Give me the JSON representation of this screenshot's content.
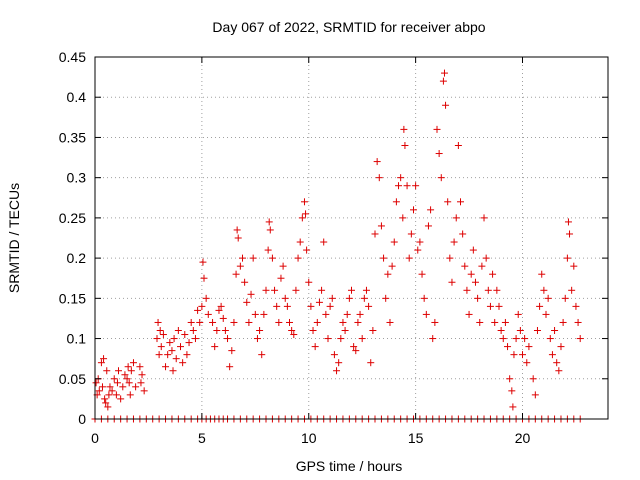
{
  "chart_data": {
    "type": "scatter",
    "title": "Day 067 of 2022, SRMTID for receiver abpo",
    "xlabel": "GPS time / hours",
    "ylabel": "SRMTID / TECUs",
    "xlim": [
      0,
      24
    ],
    "ylim": [
      0,
      0.45
    ],
    "xticks": [
      0,
      5,
      10,
      15,
      20
    ],
    "xtick_labels": [
      "0",
      "5",
      "10",
      "15",
      "20"
    ],
    "yticks": [
      0,
      0.05,
      0.1,
      0.15,
      0.2,
      0.25,
      0.3,
      0.35,
      0.4,
      0.45
    ],
    "ytick_labels": [
      "0",
      "0.05",
      "0.1",
      "0.15",
      "0.2",
      "0.25",
      "0.3",
      "0.35",
      "0.4",
      "0.45"
    ],
    "grid": true,
    "marker": "+",
    "color": "#dd0000",
    "series": [
      {
        "name": "SRMTID",
        "points": [
          [
            0.05,
            0.045
          ],
          [
            0.1,
            0.03
          ],
          [
            0.15,
            0.05
          ],
          [
            0.2,
            0.035
          ],
          [
            0.3,
            0.07
          ],
          [
            0.35,
            0.04
          ],
          [
            0.4,
            0.075
          ],
          [
            0.45,
            0.025
          ],
          [
            0.5,
            0.02
          ],
          [
            0.55,
            0.06
          ],
          [
            0.6,
            0.015
          ],
          [
            0.65,
            0.03
          ],
          [
            0.7,
            0.04
          ],
          [
            0.8,
            0.035
          ],
          [
            0.9,
            0.05
          ],
          [
            1.0,
            0.03
          ],
          [
            1.05,
            0.045
          ],
          [
            1.1,
            0.06
          ],
          [
            1.2,
            0.025
          ],
          [
            1.3,
            0.04
          ],
          [
            1.4,
            0.055
          ],
          [
            1.5,
            0.05
          ],
          [
            1.55,
            0.065
          ],
          [
            1.6,
            0.045
          ],
          [
            1.65,
            0.03
          ],
          [
            1.7,
            0.06
          ],
          [
            1.8,
            0.07
          ],
          [
            1.9,
            0.04
          ],
          [
            2.1,
            0.065
          ],
          [
            2.15,
            0.045
          ],
          [
            2.2,
            0.055
          ],
          [
            2.3,
            0.035
          ],
          [
            2.9,
            0.1
          ],
          [
            2.95,
            0.12
          ],
          [
            3.0,
            0.08
          ],
          [
            3.05,
            0.11
          ],
          [
            3.1,
            0.09
          ],
          [
            3.2,
            0.105
          ],
          [
            3.3,
            0.065
          ],
          [
            3.4,
            0.08
          ],
          [
            3.5,
            0.095
          ],
          [
            3.6,
            0.085
          ],
          [
            3.65,
            0.06
          ],
          [
            3.7,
            0.1
          ],
          [
            3.8,
            0.075
          ],
          [
            3.9,
            0.11
          ],
          [
            4.0,
            0.09
          ],
          [
            4.1,
            0.07
          ],
          [
            4.2,
            0.105
          ],
          [
            4.3,
            0.08
          ],
          [
            4.4,
            0.095
          ],
          [
            4.5,
            0.12
          ],
          [
            4.6,
            0.11
          ],
          [
            4.7,
            0.1
          ],
          [
            4.8,
            0.135
          ],
          [
            4.9,
            0.12
          ],
          [
            5.0,
            0.14
          ],
          [
            5.05,
            0.195
          ],
          [
            5.1,
            0.175
          ],
          [
            5.2,
            0.15
          ],
          [
            5.3,
            0.13
          ],
          [
            5.5,
            0.12
          ],
          [
            5.6,
            0.09
          ],
          [
            5.7,
            0.11
          ],
          [
            5.8,
            0.135
          ],
          [
            5.9,
            0.14
          ],
          [
            6.0,
            0.125
          ],
          [
            6.1,
            0.11
          ],
          [
            6.2,
            0.1
          ],
          [
            6.3,
            0.065
          ],
          [
            6.4,
            0.085
          ],
          [
            6.5,
            0.12
          ],
          [
            6.6,
            0.18
          ],
          [
            6.65,
            0.235
          ],
          [
            6.7,
            0.225
          ],
          [
            6.8,
            0.19
          ],
          [
            6.9,
            0.2
          ],
          [
            7.0,
            0.17
          ],
          [
            7.1,
            0.145
          ],
          [
            7.2,
            0.12
          ],
          [
            7.3,
            0.155
          ],
          [
            7.4,
            0.2
          ],
          [
            7.5,
            0.13
          ],
          [
            7.6,
            0.1
          ],
          [
            7.7,
            0.11
          ],
          [
            7.8,
            0.08
          ],
          [
            7.9,
            0.13
          ],
          [
            8.0,
            0.16
          ],
          [
            8.1,
            0.21
          ],
          [
            8.15,
            0.245
          ],
          [
            8.2,
            0.235
          ],
          [
            8.3,
            0.2
          ],
          [
            8.4,
            0.16
          ],
          [
            8.5,
            0.14
          ],
          [
            8.6,
            0.12
          ],
          [
            8.7,
            0.175
          ],
          [
            8.8,
            0.19
          ],
          [
            8.9,
            0.15
          ],
          [
            9.0,
            0.14
          ],
          [
            9.1,
            0.12
          ],
          [
            9.2,
            0.11
          ],
          [
            9.3,
            0.105
          ],
          [
            9.4,
            0.16
          ],
          [
            9.5,
            0.2
          ],
          [
            9.6,
            0.22
          ],
          [
            9.7,
            0.25
          ],
          [
            9.8,
            0.27
          ],
          [
            9.85,
            0.255
          ],
          [
            9.9,
            0.21
          ],
          [
            10.0,
            0.17
          ],
          [
            10.1,
            0.14
          ],
          [
            10.2,
            0.11
          ],
          [
            10.3,
            0.09
          ],
          [
            10.4,
            0.12
          ],
          [
            10.5,
            0.145
          ],
          [
            10.6,
            0.16
          ],
          [
            10.7,
            0.22
          ],
          [
            10.8,
            0.13
          ],
          [
            10.9,
            0.1
          ],
          [
            11.0,
            0.14
          ],
          [
            11.1,
            0.15
          ],
          [
            11.2,
            0.08
          ],
          [
            11.3,
            0.06
          ],
          [
            11.4,
            0.07
          ],
          [
            11.5,
            0.1
          ],
          [
            11.6,
            0.12
          ],
          [
            11.7,
            0.11
          ],
          [
            11.8,
            0.13
          ],
          [
            11.9,
            0.15
          ],
          [
            12.0,
            0.16
          ],
          [
            12.1,
            0.09
          ],
          [
            12.2,
            0.085
          ],
          [
            12.3,
            0.12
          ],
          [
            12.4,
            0.13
          ],
          [
            12.5,
            0.1
          ],
          [
            12.6,
            0.15
          ],
          [
            12.7,
            0.16
          ],
          [
            12.8,
            0.14
          ],
          [
            12.9,
            0.07
          ],
          [
            13.0,
            0.11
          ],
          [
            13.1,
            0.23
          ],
          [
            13.2,
            0.32
          ],
          [
            13.3,
            0.3
          ],
          [
            13.4,
            0.24
          ],
          [
            13.5,
            0.2
          ],
          [
            13.6,
            0.15
          ],
          [
            13.7,
            0.18
          ],
          [
            13.8,
            0.12
          ],
          [
            13.9,
            0.19
          ],
          [
            14.0,
            0.22
          ],
          [
            14.1,
            0.27
          ],
          [
            14.2,
            0.29
          ],
          [
            14.3,
            0.3
          ],
          [
            14.4,
            0.25
          ],
          [
            14.45,
            0.36
          ],
          [
            14.5,
            0.34
          ],
          [
            14.6,
            0.29
          ],
          [
            14.7,
            0.2
          ],
          [
            14.8,
            0.23
          ],
          [
            14.9,
            0.26
          ],
          [
            15.0,
            0.29
          ],
          [
            15.1,
            0.21
          ],
          [
            15.2,
            0.22
          ],
          [
            15.3,
            0.18
          ],
          [
            15.4,
            0.15
          ],
          [
            15.5,
            0.13
          ],
          [
            15.6,
            0.24
          ],
          [
            15.7,
            0.26
          ],
          [
            15.8,
            0.1
          ],
          [
            15.9,
            0.12
          ],
          [
            16.0,
            0.36
          ],
          [
            16.1,
            0.33
          ],
          [
            16.2,
            0.3
          ],
          [
            16.3,
            0.42
          ],
          [
            16.35,
            0.43
          ],
          [
            16.4,
            0.39
          ],
          [
            16.5,
            0.27
          ],
          [
            16.6,
            0.2
          ],
          [
            16.7,
            0.17
          ],
          [
            16.8,
            0.22
          ],
          [
            16.9,
            0.25
          ],
          [
            17.0,
            0.34
          ],
          [
            17.1,
            0.27
          ],
          [
            17.2,
            0.23
          ],
          [
            17.3,
            0.19
          ],
          [
            17.4,
            0.16
          ],
          [
            17.5,
            0.13
          ],
          [
            17.6,
            0.18
          ],
          [
            17.7,
            0.21
          ],
          [
            17.8,
            0.17
          ],
          [
            17.9,
            0.15
          ],
          [
            18.0,
            0.12
          ],
          [
            18.1,
            0.19
          ],
          [
            18.2,
            0.25
          ],
          [
            18.3,
            0.2
          ],
          [
            18.4,
            0.16
          ],
          [
            18.5,
            0.14
          ],
          [
            18.6,
            0.18
          ],
          [
            18.7,
            0.12
          ],
          [
            18.8,
            0.16
          ],
          [
            18.9,
            0.14
          ],
          [
            19.0,
            0.11
          ],
          [
            19.1,
            0.1
          ],
          [
            19.2,
            0.12
          ],
          [
            19.3,
            0.09
          ],
          [
            19.4,
            0.05
          ],
          [
            19.5,
            0.035
          ],
          [
            19.55,
            0.015
          ],
          [
            19.6,
            0.08
          ],
          [
            19.7,
            0.1
          ],
          [
            19.8,
            0.13
          ],
          [
            19.9,
            0.11
          ],
          [
            20.0,
            0.08
          ],
          [
            20.1,
            0.1
          ],
          [
            20.2,
            0.07
          ],
          [
            20.3,
            0.09
          ],
          [
            20.5,
            0.05
          ],
          [
            20.6,
            0.03
          ],
          [
            20.7,
            0.11
          ],
          [
            20.8,
            0.14
          ],
          [
            20.9,
            0.18
          ],
          [
            21.0,
            0.16
          ],
          [
            21.1,
            0.13
          ],
          [
            21.2,
            0.15
          ],
          [
            21.3,
            0.1
          ],
          [
            21.4,
            0.08
          ],
          [
            21.5,
            0.11
          ],
          [
            21.6,
            0.07
          ],
          [
            21.7,
            0.06
          ],
          [
            21.8,
            0.09
          ],
          [
            21.9,
            0.12
          ],
          [
            22.0,
            0.15
          ],
          [
            22.1,
            0.2
          ],
          [
            22.15,
            0.245
          ],
          [
            22.2,
            0.23
          ],
          [
            22.3,
            0.16
          ],
          [
            22.4,
            0.19
          ],
          [
            22.5,
            0.14
          ],
          [
            22.6,
            0.12
          ],
          [
            22.7,
            0.1
          ]
        ]
      }
    ],
    "zero_points_x": [
      0.0,
      0.3,
      0.6,
      0.9,
      1.2,
      1.5,
      1.8,
      2.1,
      2.4,
      2.7,
      3.0,
      3.3,
      3.6,
      3.9,
      4.2,
      4.5,
      4.8,
      5.0,
      5.2,
      5.4,
      5.6,
      5.8,
      6.0,
      6.2,
      6.5,
      6.8,
      7.1,
      7.4,
      7.7,
      8.0,
      8.3,
      8.6,
      8.9,
      9.2,
      9.5,
      9.8,
      10.1,
      10.4,
      10.7,
      11.0,
      11.3,
      11.6,
      11.9,
      12.2,
      12.5,
      12.8,
      13.1,
      13.4,
      13.7,
      14.0,
      14.3,
      14.6,
      14.9,
      15.2,
      15.5,
      15.8,
      16.1,
      16.4,
      16.7,
      17.0,
      17.3,
      17.6,
      17.9,
      18.2,
      18.5,
      18.8,
      19.1,
      19.4,
      19.7,
      20.0,
      20.3,
      20.6,
      20.9,
      21.2,
      21.5,
      21.8,
      22.1,
      22.4,
      22.7
    ]
  }
}
